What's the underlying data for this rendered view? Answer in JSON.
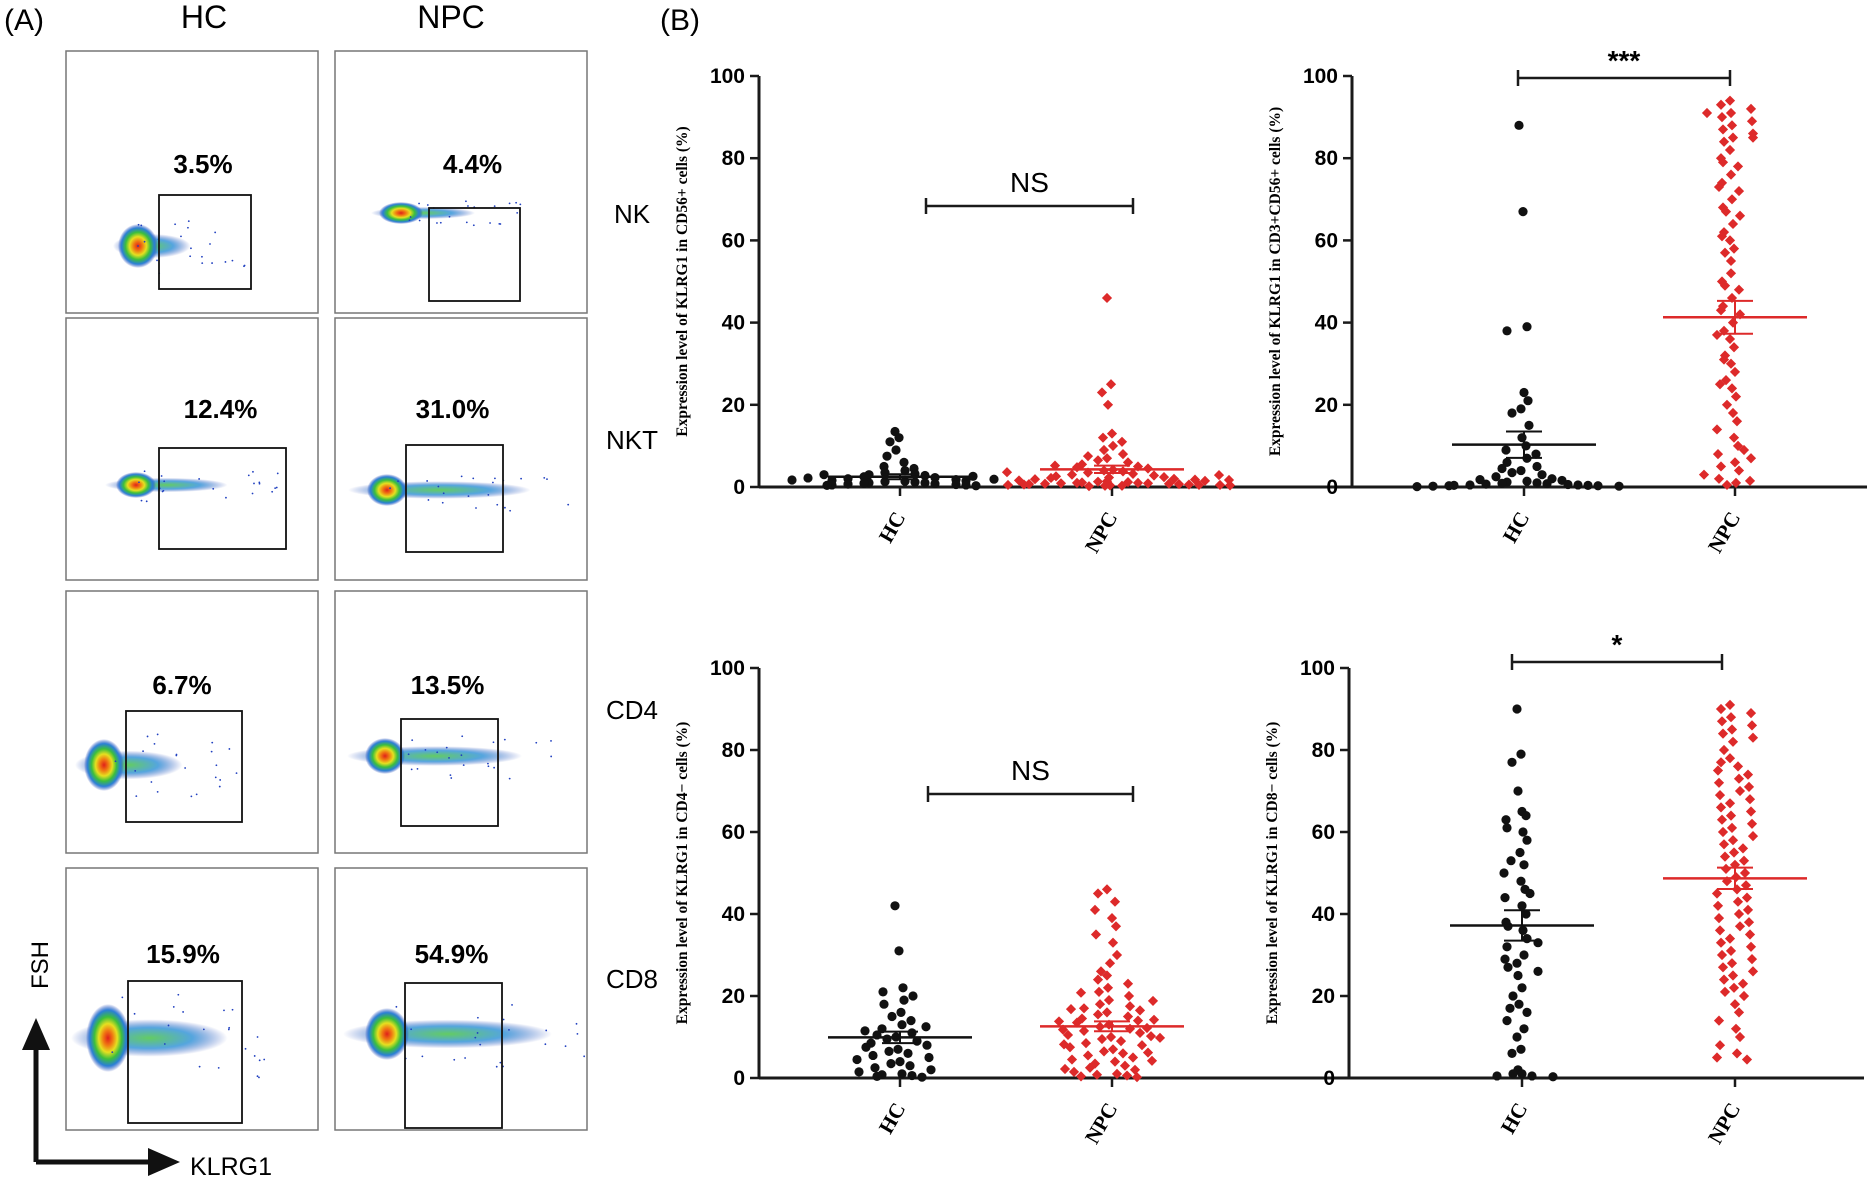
{
  "panel_a": {
    "label": "(A)",
    "col_labels": [
      "HC",
      "NPC"
    ],
    "row_labels": [
      "NK",
      "NKT",
      "CD4",
      "CD8"
    ],
    "percentages": [
      [
        "3.5%",
        "4.4%"
      ],
      [
        "12.4%",
        "31.0%"
      ],
      [
        "6.7%",
        "13.5%"
      ],
      [
        "15.9%",
        "54.9%"
      ]
    ],
    "y_axis": "FSH",
    "x_axis": "KLRG1"
  },
  "panel_b": {
    "label": "(B)"
  },
  "colors": {
    "hc": "#111111",
    "npc": "#dd2a2a",
    "axis": "#1a1a1a"
  },
  "chart_data": [
    {
      "type": "scatter",
      "ylabel": "Expression level of KLRG1 in CD56+ cells (%)",
      "categories": [
        "HC",
        "NPC"
      ],
      "ylim": [
        0,
        100
      ],
      "yticks": [
        0,
        20,
        40,
        60,
        80,
        100
      ],
      "significance": "NS",
      "series": [
        {
          "category": "HC",
          "mean": 2.5,
          "sem": 0.6,
          "values": [
            13.5,
            12,
            11,
            9,
            7.5,
            6,
            5,
            4.5,
            4,
            3.5,
            3.2,
            3,
            2.8,
            2.5,
            2.3,
            2,
            1.8,
            1.6,
            1.5,
            1.4,
            1.3,
            1.2,
            1,
            1,
            0.9,
            0.8,
            0.7,
            0.6,
            0.5,
            0.5,
            0.4,
            0.3,
            3,
            2.6,
            2.2,
            1.9,
            1.7
          ]
        },
        {
          "category": "NPC",
          "mean": 4.3,
          "sem": 0.9,
          "values": [
            46,
            25,
            23,
            20,
            13,
            12,
            11,
            10,
            9,
            8,
            7.5,
            7,
            6.5,
            6,
            5.5,
            5,
            4.8,
            4.5,
            4.2,
            4,
            3.8,
            3.5,
            3.2,
            3,
            2.8,
            2.6,
            2.4,
            2.2,
            2,
            1.9,
            1.8,
            1.6,
            1.5,
            1.4,
            1.3,
            1.2,
            1.1,
            1,
            1,
            0.9,
            0.9,
            0.8,
            0.8,
            0.7,
            0.7,
            0.6,
            0.6,
            0.5,
            0.5,
            0.5,
            0.4,
            0.4,
            0.3,
            0.3,
            0.2,
            5.2,
            3.6,
            2.9,
            2.3,
            1.7
          ]
        }
      ]
    },
    {
      "type": "scatter",
      "ylabel": "Expression level of KLRG1 in CD3+CD56+ cells (%)",
      "categories": [
        "HC",
        "NPC"
      ],
      "ylim": [
        0,
        100
      ],
      "yticks": [
        0,
        20,
        40,
        60,
        80,
        100
      ],
      "significance": "***",
      "series": [
        {
          "category": "HC",
          "mean": 10.3,
          "sem": 3.2,
          "values": [
            88,
            67,
            39,
            38,
            23,
            21,
            19,
            18,
            15,
            12,
            10,
            9,
            8,
            7,
            6,
            5,
            4.5,
            4,
            3.5,
            3,
            2.5,
            2,
            1.8,
            1.6,
            1.4,
            1.2,
            1,
            0.9,
            0.8,
            0.7,
            0.6,
            0.5,
            0.5,
            0.4,
            0.4,
            0.3,
            0.3,
            0.2,
            0.2,
            0.1
          ]
        },
        {
          "category": "NPC",
          "mean": 41.3,
          "sem": 4.0,
          "values": [
            94,
            93,
            92,
            91,
            90,
            89,
            88,
            87,
            86,
            85,
            84,
            82,
            80,
            78,
            76,
            74,
            72,
            70,
            68,
            66,
            64,
            62,
            60,
            58,
            57,
            52,
            50,
            48,
            46,
            44,
            42,
            40,
            38,
            36,
            34,
            32,
            30,
            28,
            26,
            24,
            22,
            20,
            18,
            16,
            14,
            12,
            10,
            8,
            6,
            4,
            2,
            1,
            0.5,
            25,
            31,
            37,
            43,
            49,
            55,
            61,
            67,
            73,
            79,
            85,
            91,
            1.5,
            3,
            5,
            7,
            9
          ]
        }
      ]
    },
    {
      "type": "scatter",
      "ylabel": "Expression level of KLRG1 in CD4− cells (%)",
      "categories": [
        "HC",
        "NPC"
      ],
      "ylim": [
        0,
        100
      ],
      "yticks": [
        0,
        20,
        40,
        60,
        80,
        100
      ],
      "significance": "NS",
      "series": [
        {
          "category": "HC",
          "mean": 9.9,
          "sem": 1.4,
          "values": [
            42,
            31,
            22,
            21,
            20,
            19,
            18,
            16,
            15,
            14,
            13,
            12,
            11,
            10.5,
            10,
            9.5,
            9,
            8.5,
            8,
            7.5,
            7,
            6.5,
            6,
            5.5,
            5,
            4.5,
            4,
            3.5,
            3,
            2.5,
            2,
            1.5,
            1,
            0.8,
            0.6,
            0.4,
            0.2,
            12.5,
            11.5
          ]
        },
        {
          "category": "NPC",
          "mean": 12.6,
          "sem": 1.2,
          "values": [
            46,
            45,
            43,
            41,
            39,
            37,
            35,
            33,
            30,
            28,
            26,
            25,
            24,
            23,
            22,
            21,
            20,
            19,
            18,
            17.5,
            17,
            16.5,
            16,
            15.5,
            15,
            14.5,
            14,
            13.5,
            13,
            12.5,
            12,
            11.5,
            11,
            10.5,
            10,
            9.5,
            9,
            8.5,
            8,
            7.5,
            7,
            6.5,
            6,
            5.5,
            5,
            4.5,
            4,
            3.5,
            3,
            2.5,
            2,
            1.5,
            1,
            0.8,
            0.6,
            0.4,
            0.2,
            14.2,
            12.2,
            10.2,
            8.2,
            6.2,
            4.2,
            2.2,
            16.8,
            18.8,
            20.8,
            13.8,
            11.8,
            9.8
          ]
        }
      ]
    },
    {
      "type": "scatter",
      "ylabel": "Expression level of KLRG1 in CD8− cells (%)",
      "categories": [
        "HC",
        "NPC"
      ],
      "ylim": [
        0,
        100
      ],
      "yticks": [
        0,
        20,
        40,
        60,
        80,
        100
      ],
      "significance": "*",
      "series": [
        {
          "category": "HC",
          "mean": 37.2,
          "sem": 3.7,
          "values": [
            90,
            79,
            77,
            70,
            65,
            64,
            63,
            60,
            58,
            55,
            52,
            50,
            48,
            46,
            44,
            42,
            40,
            38,
            36,
            34,
            32,
            30,
            28,
            27,
            26,
            25,
            22,
            20,
            18,
            17,
            16,
            14,
            12,
            10,
            7,
            6,
            2,
            1,
            1,
            0.5,
            0.5,
            0.3,
            61,
            53,
            45,
            37,
            33,
            29
          ]
        },
        {
          "category": "NPC",
          "mean": 48.7,
          "sem": 2.6,
          "values": [
            91,
            90,
            89,
            88,
            87,
            86,
            85,
            84,
            83,
            82,
            80,
            78,
            77,
            76,
            75,
            74,
            73,
            72,
            71,
            70,
            69,
            68,
            67,
            66,
            65,
            64,
            63,
            62,
            61,
            60,
            59,
            58,
            57,
            56,
            55,
            54,
            53,
            52,
            51,
            50,
            49,
            48,
            47,
            46,
            45,
            44,
            43,
            42,
            41,
            40,
            39,
            38,
            37,
            36,
            35,
            34,
            33,
            32,
            31,
            30,
            29,
            28,
            27,
            26,
            25,
            24,
            23,
            22,
            21,
            20,
            18,
            16,
            14,
            12,
            10,
            8,
            6,
            5,
            4.5
          ]
        }
      ]
    }
  ]
}
